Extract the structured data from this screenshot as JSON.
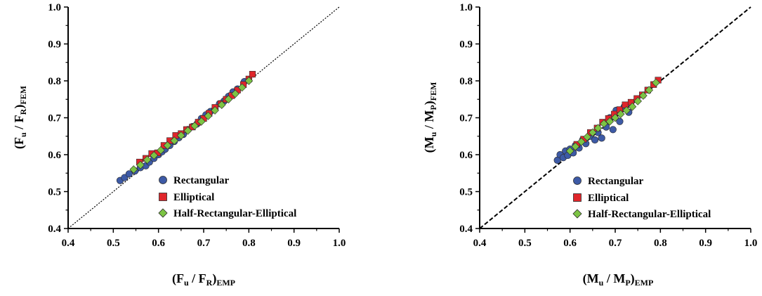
{
  "colors": {
    "rectangular": "#3d5aa6",
    "elliptical": "#e0262b",
    "half": "#7cc444",
    "edge": "#2b2b2b"
  },
  "legend_labels": {
    "rectangular": "Rectangular",
    "elliptical": "Elliptical",
    "half": "Half-Rectangular-Elliptical"
  },
  "chart_data": [
    {
      "type": "scatter",
      "xlabel": "(Fu / FR)EMP",
      "ylabel": "(Fu / FR)FEM",
      "xlim": [
        0.4,
        1.0
      ],
      "ylim": [
        0.4,
        1.0
      ],
      "xticks": [
        "0.4",
        "0.5",
        "0.6",
        "0.7",
        "0.8",
        "0.9",
        "1.0"
      ],
      "yticks": [
        "0.4",
        "0.5",
        "0.6",
        "0.7",
        "0.8",
        "0.9",
        "1.0"
      ],
      "grid": false,
      "legend_position": "lower-right",
      "reference_line": {
        "from": [
          0.4,
          0.4
        ],
        "to": [
          1.0,
          1.0
        ],
        "style": "dotted"
      },
      "series": [
        {
          "name": "Rectangular",
          "marker": "circle",
          "x": [
            0.515,
            0.525,
            0.535,
            0.548,
            0.56,
            0.572,
            0.58,
            0.59,
            0.6,
            0.608,
            0.615,
            0.625,
            0.635,
            0.645,
            0.655,
            0.665,
            0.675,
            0.685,
            0.695,
            0.705,
            0.715,
            0.725,
            0.735,
            0.745,
            0.755,
            0.765,
            0.775,
            0.79
          ],
          "y": [
            0.53,
            0.538,
            0.548,
            0.556,
            0.565,
            0.57,
            0.58,
            0.59,
            0.6,
            0.608,
            0.615,
            0.625,
            0.636,
            0.646,
            0.655,
            0.668,
            0.676,
            0.683,
            0.698,
            0.708,
            0.717,
            0.724,
            0.738,
            0.745,
            0.758,
            0.77,
            0.778,
            0.798
          ]
        },
        {
          "name": "Elliptical",
          "marker": "square",
          "x": [
            0.558,
            0.572,
            0.585,
            0.598,
            0.612,
            0.625,
            0.638,
            0.65,
            0.662,
            0.675,
            0.688,
            0.7,
            0.712,
            0.725,
            0.738,
            0.75,
            0.762,
            0.775,
            0.788,
            0.8,
            0.808
          ],
          "y": [
            0.58,
            0.59,
            0.603,
            0.605,
            0.625,
            0.638,
            0.652,
            0.657,
            0.668,
            0.675,
            0.688,
            0.698,
            0.712,
            0.728,
            0.738,
            0.75,
            0.76,
            0.775,
            0.79,
            0.805,
            0.818
          ]
        },
        {
          "name": "Half-Rectangular-Elliptical",
          "marker": "diamond",
          "x": [
            0.545,
            0.56,
            0.575,
            0.59,
            0.605,
            0.62,
            0.635,
            0.65,
            0.665,
            0.68,
            0.695,
            0.71,
            0.725,
            0.74,
            0.755,
            0.77,
            0.785,
            0.8
          ],
          "y": [
            0.56,
            0.572,
            0.586,
            0.598,
            0.612,
            0.625,
            0.638,
            0.652,
            0.665,
            0.678,
            0.69,
            0.705,
            0.72,
            0.735,
            0.75,
            0.765,
            0.782,
            0.8
          ]
        }
      ]
    },
    {
      "type": "scatter",
      "xlabel": "(Mu / MP)EMP",
      "ylabel": "(Mu / MP)FEM",
      "xlim": [
        0.4,
        1.0
      ],
      "ylim": [
        0.4,
        1.0
      ],
      "xticks": [
        "0.4",
        "0.5",
        "0.6",
        "0.7",
        "0.8",
        "0.9",
        "1.0"
      ],
      "yticks": [
        "0.4",
        "0.5",
        "0.6",
        "0.7",
        "0.8",
        "0.9",
        "1.0"
      ],
      "grid": false,
      "legend_position": "lower-right",
      "reference_line": {
        "from": [
          0.4,
          0.4
        ],
        "to": [
          1.0,
          1.0
        ],
        "style": "dashed"
      },
      "series": [
        {
          "name": "Rectangular",
          "marker": "circle",
          "x": [
            0.572,
            0.578,
            0.585,
            0.59,
            0.595,
            0.6,
            0.607,
            0.612,
            0.62,
            0.628,
            0.635,
            0.645,
            0.655,
            0.662,
            0.67,
            0.68,
            0.688,
            0.695,
            0.702,
            0.71,
            0.72,
            0.73
          ],
          "y": [
            0.585,
            0.6,
            0.592,
            0.61,
            0.598,
            0.615,
            0.605,
            0.625,
            0.618,
            0.64,
            0.63,
            0.65,
            0.64,
            0.66,
            0.645,
            0.675,
            0.7,
            0.668,
            0.72,
            0.69,
            0.73,
            0.715
          ]
        },
        {
          "name": "Elliptical",
          "marker": "square",
          "x": [
            0.615,
            0.63,
            0.645,
            0.66,
            0.672,
            0.685,
            0.698,
            0.71,
            0.722,
            0.735,
            0.748,
            0.76,
            0.772,
            0.785,
            0.795
          ],
          "y": [
            0.628,
            0.642,
            0.66,
            0.672,
            0.688,
            0.698,
            0.71,
            0.722,
            0.735,
            0.742,
            0.752,
            0.762,
            0.775,
            0.79,
            0.802
          ]
        },
        {
          "name": "Half-Rectangular-Elliptical",
          "marker": "diamond",
          "x": [
            0.6,
            0.612,
            0.625,
            0.638,
            0.65,
            0.662,
            0.675,
            0.688,
            0.7,
            0.712,
            0.725,
            0.738,
            0.75,
            0.762,
            0.775,
            0.79
          ],
          "y": [
            0.61,
            0.622,
            0.635,
            0.648,
            0.66,
            0.672,
            0.684,
            0.69,
            0.7,
            0.71,
            0.72,
            0.73,
            0.745,
            0.76,
            0.775,
            0.795
          ]
        }
      ]
    }
  ]
}
